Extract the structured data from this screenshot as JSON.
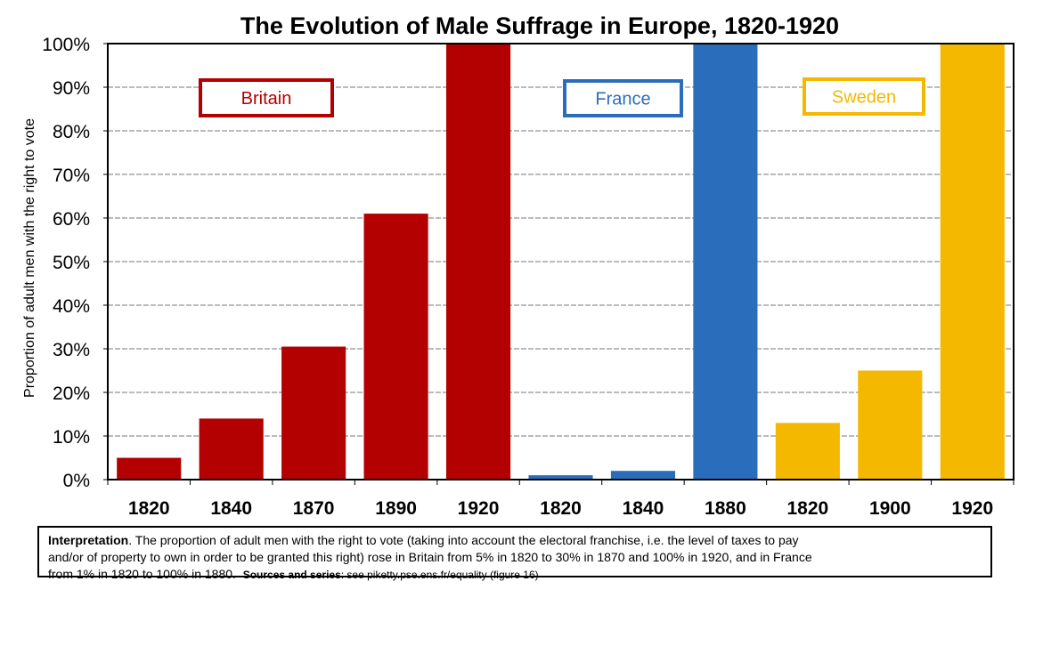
{
  "chart_data": {
    "type": "bar",
    "title": "The Evolution of Male Suffrage in Europe, 1820-1920",
    "ylabel": "Proportion of adult men with the right to vote",
    "xlabel": "",
    "ylim": [
      0,
      100
    ],
    "yticks": [
      "0%",
      "10%",
      "20%",
      "30%",
      "40%",
      "50%",
      "60%",
      "70%",
      "80%",
      "90%",
      "100%"
    ],
    "grid": true,
    "groups": [
      {
        "name": "Britain",
        "color": "#b30000",
        "categories": [
          "1820",
          "1840",
          "1870",
          "1890",
          "1920"
        ],
        "values": [
          5,
          14,
          30.5,
          61,
          100
        ]
      },
      {
        "name": "France",
        "color": "#2a6ebb",
        "categories": [
          "1820",
          "1840",
          "1880"
        ],
        "values": [
          1,
          2,
          100
        ]
      },
      {
        "name": "Sweden",
        "color": "#f5b800",
        "categories": [
          "1820",
          "1900",
          "1920"
        ],
        "values": [
          13,
          25,
          100
        ]
      }
    ]
  },
  "note": {
    "lead": "Interpretation",
    "line1": ". The proportion of adult men with the right to vote (taking into account the electoral franchise, i.e. the level of taxes to pay",
    "line2": "and/or of property to own in order to be granted this right) rose in Britain from 5% in 1820 to 30% in 1870 and 100% in 1920, and in France",
    "line3": "from 1% in 1820 to 100% in 1880.",
    "sources_label": "Sources and series",
    "sources_text": ": see piketty.pse.ens.fr/equality (figure 16)"
  }
}
